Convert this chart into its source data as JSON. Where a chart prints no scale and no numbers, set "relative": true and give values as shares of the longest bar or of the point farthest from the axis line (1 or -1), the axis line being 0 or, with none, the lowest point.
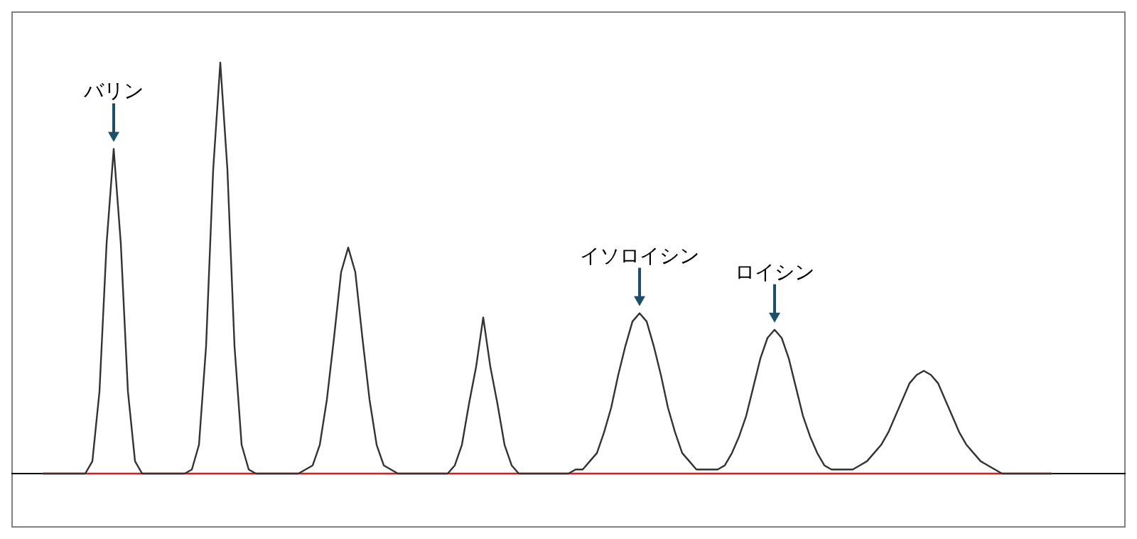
{
  "chart_data": {
    "type": "line",
    "relative": true,
    "categories": [
      null,
      null,
      null,
      null,
      null,
      null,
      null,
      null,
      null,
      null,
      null,
      null,
      null,
      null,
      null,
      null,
      null,
      null,
      null,
      null,
      null,
      null,
      null,
      null,
      null,
      null,
      null,
      null,
      null,
      null,
      null,
      null,
      null,
      null,
      null,
      null,
      null,
      null,
      null,
      null,
      null,
      null,
      null,
      null,
      null,
      null,
      null,
      null,
      null,
      null,
      null,
      null,
      null,
      null,
      null,
      null,
      null,
      null,
      null,
      null,
      null,
      null,
      null,
      null,
      null,
      null,
      null,
      null,
      null,
      null,
      null,
      null,
      null,
      null,
      null,
      null,
      null,
      null,
      null,
      null,
      null,
      null,
      null,
      null,
      null,
      null,
      null,
      null,
      null,
      null,
      null,
      null,
      null,
      null,
      null,
      null,
      null,
      null,
      null,
      null,
      null,
      null,
      null,
      null,
      null,
      null,
      null,
      null,
      null,
      null,
      null,
      null,
      null,
      null,
      null,
      null,
      null,
      null,
      null,
      null,
      null,
      null,
      null,
      null,
      null,
      null,
      null,
      null,
      null,
      null,
      null,
      null,
      null,
      null,
      null,
      null,
      null,
      null,
      null,
      null,
      null,
      null,
      null
    ],
    "series": [
      {
        "color": "#333333",
        "values": [
          0,
          0,
          0,
          0,
          0,
          0,
          0,
          0.03,
          0.2,
          0.56,
          0.79,
          0.56,
          0.2,
          0.03,
          0,
          0,
          0,
          0,
          0,
          0,
          0,
          0.01,
          0.07,
          0.31,
          0.74,
          1,
          0.74,
          0.31,
          0.07,
          0.01,
          0,
          0,
          0,
          0,
          0,
          0,
          0,
          0.01,
          0.02,
          0.07,
          0.18,
          0.33,
          0.49,
          0.55,
          0.49,
          0.33,
          0.18,
          0.07,
          0.02,
          0.01,
          0,
          0,
          0,
          0,
          0,
          0,
          0,
          0,
          0.02,
          0.07,
          0.17,
          0.26,
          0.38,
          0.26,
          0.17,
          0.07,
          0.02,
          0,
          0,
          0,
          0,
          0,
          0,
          0,
          0,
          0.01,
          0.01,
          0.03,
          0.05,
          0.1,
          0.16,
          0.24,
          0.31,
          0.37,
          0.39,
          0.37,
          0.31,
          0.24,
          0.16,
          0.1,
          0.05,
          0.03,
          0.01,
          0.01,
          0.01,
          0.01,
          0.02,
          0.05,
          0.09,
          0.14,
          0.21,
          0.28,
          0.33,
          0.35,
          0.33,
          0.28,
          0.21,
          0.14,
          0.09,
          0.05,
          0.02,
          0.01,
          0.01,
          0.01,
          0.01,
          0.02,
          0.03,
          0.05,
          0.07,
          0.1,
          0.14,
          0.18,
          0.22,
          0.24,
          0.25,
          0.24,
          0.22,
          0.18,
          0.14,
          0.1,
          0.07,
          0.05,
          0.03,
          0.02,
          0.01,
          0,
          0,
          0,
          0,
          0,
          0,
          0,
          0
        ]
      }
    ],
    "annotations": [
      {
        "text": "バリン",
        "y": 0.79
      },
      {
        "text": "イソロイシン",
        "y": 0.39
      },
      {
        "text": "ロイシン",
        "y": 0.35
      }
    ]
  }
}
